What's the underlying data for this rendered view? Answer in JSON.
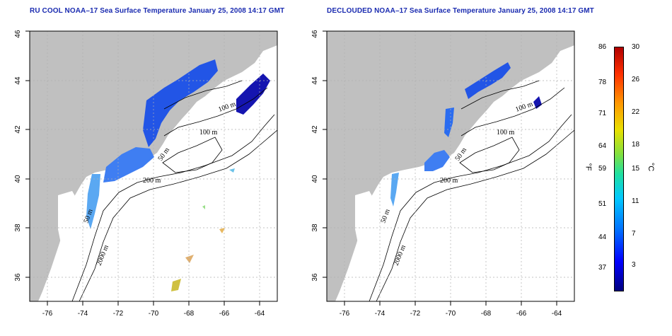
{
  "titles": {
    "left": "RU COOL NOAA–17 Sea Surface Temperature January 25, 2008 14:17 GMT",
    "right": "DECLOUDED NOAA–17 Sea Surface Temperature January 25, 2008 14:17 GMT"
  },
  "map": {
    "lon_range": [
      -77,
      -63
    ],
    "lat_range": [
      35,
      46
    ],
    "lon_ticks": [
      "-76",
      "-74",
      "-72",
      "-70",
      "-68",
      "-66",
      "-64"
    ],
    "lat_ticks": [
      "36",
      "38",
      "40",
      "42",
      "44",
      "46"
    ],
    "contour_labels": [
      "100 m",
      "100 m",
      "50 m",
      "200 m",
      "50 m",
      "2000 m"
    ],
    "colors": {
      "land": "#c0c0c0",
      "water": "#ffffff",
      "grid": "#b0b0b0",
      "contour": "#000000"
    }
  },
  "colorbar": {
    "fahrenheit_ticks": [
      "86",
      "78",
      "71",
      "64",
      "59",
      "51",
      "44",
      "37"
    ],
    "celsius_ticks": [
      "30",
      "26",
      "22",
      "18",
      "15",
      "11",
      "7",
      "3"
    ],
    "fahrenheit_unit": "°F",
    "celsius_unit": "°C"
  }
}
